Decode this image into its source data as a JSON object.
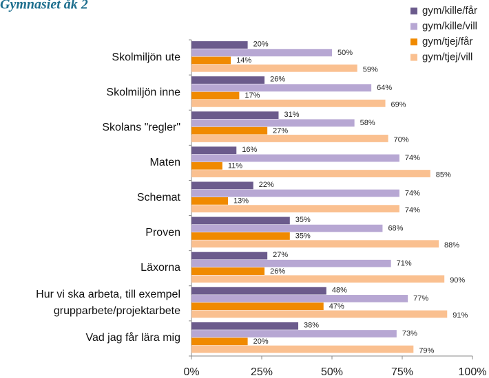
{
  "chart_data": {
    "type": "barh",
    "title": "Gymnasiet åk 2",
    "categories": [
      "Skolmiljön ute",
      "Skolmiljön inne",
      "Skolans \"regler\"",
      "Maten",
      "Schemat",
      "Proven",
      "Läxorna",
      "Hur vi ska arbeta, till exempel grupparbete/projektarbete",
      "Vad jag får lära mig"
    ],
    "series": [
      {
        "name": "gym/kille/får",
        "color": "#6b5b8c",
        "values": [
          20,
          26,
          31,
          16,
          22,
          35,
          27,
          48,
          38
        ],
        "value_labels": [
          "20%",
          "26%",
          "31%",
          "16%",
          "22%",
          "35%",
          "27%",
          "48%",
          "38%"
        ]
      },
      {
        "name": "gym/kille/vill",
        "color": "#b7a7d3",
        "values": [
          50,
          64,
          58,
          74,
          74,
          68,
          71,
          77,
          73
        ],
        "value_labels": [
          "50%",
          "64%",
          "58%",
          "74%",
          "74%",
          "68%",
          "71%",
          "77%",
          "73%"
        ]
      },
      {
        "name": "gym/tjej/får",
        "color": "#f08a00",
        "values": [
          14,
          17,
          27,
          11,
          13,
          35,
          26,
          47,
          20
        ],
        "value_labels": [
          "14%",
          "17%",
          "27%",
          "11%",
          "13%",
          "35%",
          "26%",
          "47%",
          "20%"
        ]
      },
      {
        "name": "gym/tjej/vill",
        "color": "#fac090",
        "values": [
          59,
          69,
          70,
          85,
          74,
          88,
          90,
          91,
          79
        ],
        "value_labels": [
          "59%",
          "69%",
          "70%",
          "85%",
          "74%",
          "88%",
          "90%",
          "91%",
          "79%"
        ]
      }
    ],
    "xlim": [
      0,
      100
    ],
    "xticks": [
      {
        "value": 0,
        "label": "0%"
      },
      {
        "value": 25,
        "label": "25%"
      },
      {
        "value": 50,
        "label": "50%"
      },
      {
        "value": 75,
        "label": "75%"
      },
      {
        "value": 100,
        "label": "100%"
      }
    ],
    "legend": "top-right"
  }
}
